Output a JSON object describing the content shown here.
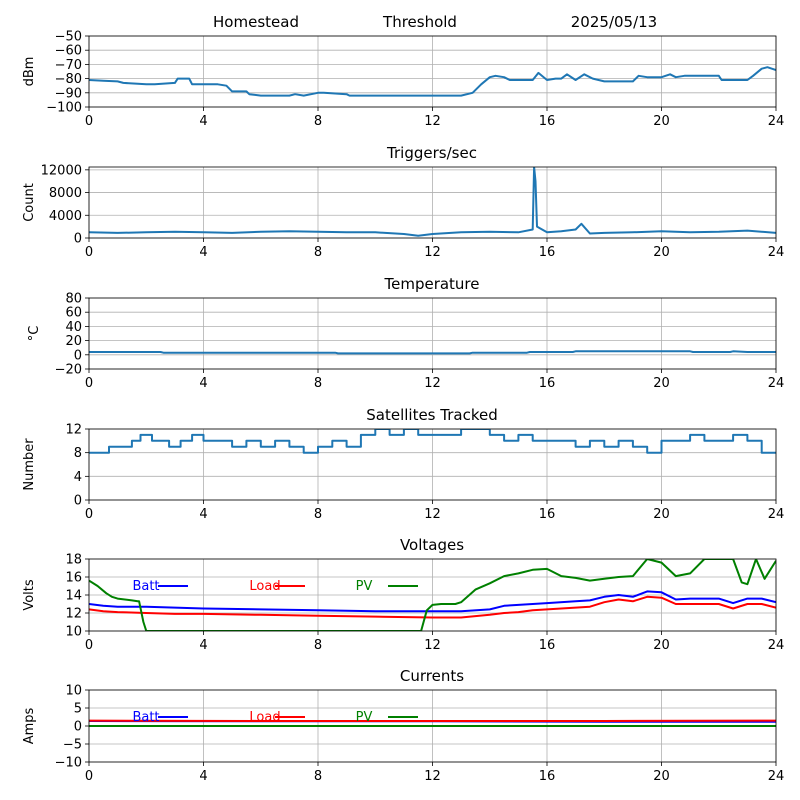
{
  "chart_data": [
    {
      "id": "dbm",
      "type": "line",
      "title": "",
      "header": [
        "Homestead",
        "Threshold",
        "2025/05/13"
      ],
      "ylabel": "dBm",
      "xlim": [
        0,
        24
      ],
      "ylim": [
        -100,
        -50
      ],
      "xticks": [
        0,
        4,
        8,
        12,
        16,
        20,
        24
      ],
      "yticks": [
        -100,
        -90,
        -80,
        -70,
        -60,
        -50
      ],
      "series": [
        {
          "color": "#1f77b4",
          "x": [
            0,
            0.5,
            1,
            1.2,
            2,
            2.3,
            3,
            3.1,
            3.5,
            3.6,
            4.5,
            4.8,
            5,
            5.5,
            5.6,
            6,
            7,
            7.2,
            7.5,
            8,
            8.2,
            9,
            9.1,
            10,
            11,
            12,
            12.5,
            13,
            13.4,
            13.7,
            14,
            14.2,
            14.5,
            14.7,
            15,
            15.5,
            15.7,
            16,
            16.3,
            16.5,
            16.7,
            17,
            17.3,
            17.6,
            18,
            19,
            19.2,
            19.5,
            20,
            20.3,
            20.5,
            20.8,
            21,
            21.5,
            22,
            22.1,
            22.5,
            22.7,
            23,
            23.2,
            23.5,
            23.7,
            24
          ],
          "y": [
            -81,
            -81.5,
            -82,
            -83,
            -84,
            -84,
            -83,
            -80,
            -80,
            -84,
            -84,
            -85,
            -89,
            -89,
            -91,
            -92,
            -92,
            -91,
            -92,
            -90,
            -90,
            -91,
            -92,
            -92,
            -92,
            -92,
            -92,
            -92,
            -90,
            -84,
            -79,
            -78,
            -79,
            -81,
            -81,
            -81,
            -76,
            -81,
            -80,
            -80,
            -77,
            -81,
            -77,
            -80,
            -82,
            -82,
            -78,
            -79,
            -79,
            -77,
            -79,
            -78,
            -78,
            -78,
            -78,
            -81,
            -81,
            -81,
            -81,
            -78,
            -73,
            -72,
            -74
          ]
        }
      ]
    },
    {
      "id": "triggers",
      "type": "line",
      "title": "Triggers/sec",
      "ylabel": "Count",
      "xlim": [
        0,
        24
      ],
      "ylim": [
        0,
        12500
      ],
      "xticks": [
        0,
        4,
        8,
        12,
        16,
        20,
        24
      ],
      "yticks": [
        0,
        4000,
        8000,
        12000
      ],
      "series": [
        {
          "color": "#1f77b4",
          "x": [
            0,
            1,
            2,
            3,
            4,
            5,
            6,
            7,
            8,
            9,
            10,
            11,
            11.5,
            12,
            13,
            14,
            15,
            15.5,
            15.55,
            15.6,
            15.65,
            16,
            16.5,
            17,
            17.2,
            17.5,
            18,
            19,
            20,
            21,
            22,
            23,
            24
          ],
          "y": [
            1000,
            900,
            1000,
            1100,
            1000,
            900,
            1100,
            1200,
            1100,
            1000,
            1000,
            700,
            400,
            700,
            1000,
            1100,
            1000,
            1500,
            12500,
            10000,
            2000,
            1000,
            1200,
            1500,
            2500,
            800,
            900,
            1000,
            1200,
            1000,
            1100,
            1300,
            900
          ]
        }
      ]
    },
    {
      "id": "temperature",
      "type": "line",
      "title": "Temperature",
      "ylabel": "°C",
      "xlim": [
        0,
        24
      ],
      "ylim": [
        -20,
        80
      ],
      "xticks": [
        0,
        4,
        8,
        12,
        16,
        20,
        24
      ],
      "yticks": [
        -20,
        0,
        20,
        40,
        60,
        80
      ],
      "series": [
        {
          "color": "#1f77b4",
          "x": [
            0,
            2.5,
            2.6,
            8.6,
            8.7,
            13.3,
            13.4,
            15.3,
            15.4,
            16.9,
            17,
            21,
            21.1,
            22.4,
            22.5,
            23,
            24
          ],
          "y": [
            4,
            4,
            3,
            3,
            2,
            2,
            3,
            3,
            4,
            4,
            5,
            5,
            4,
            4,
            5,
            4,
            4
          ]
        }
      ]
    },
    {
      "id": "satellites",
      "type": "line",
      "title": "Satellites Tracked",
      "ylabel": "Number",
      "xlim": [
        0,
        24
      ],
      "ylim": [
        0,
        12
      ],
      "xticks": [
        0,
        4,
        8,
        12,
        16,
        20,
        24
      ],
      "yticks": [
        0,
        4,
        8,
        12
      ],
      "series": [
        {
          "color": "#1f77b4",
          "x": [
            0,
            0.7,
            0.7,
            1.0,
            1.0,
            1.5,
            1.5,
            1.8,
            1.8,
            2.2,
            2.2,
            2.8,
            2.8,
            3.2,
            3.2,
            3.6,
            3.6,
            4.0,
            4.0,
            4.5,
            4.5,
            5.0,
            5.0,
            5.5,
            5.5,
            6.0,
            6.0,
            6.5,
            6.5,
            7.0,
            7.0,
            7.5,
            7.5,
            8.0,
            8.0,
            8.5,
            8.5,
            9.0,
            9.0,
            9.5,
            9.5,
            10.0,
            10.0,
            10.5,
            10.5,
            11.0,
            11.0,
            11.5,
            11.5,
            12.0,
            12.0,
            13.0,
            13.0,
            14.0,
            14.0,
            14.5,
            14.5,
            15.0,
            15.0,
            15.5,
            15.5,
            16.0,
            16.0,
            17.0,
            17.0,
            17.5,
            17.5,
            18.0,
            18.0,
            18.5,
            18.5,
            19.0,
            19.0,
            19.5,
            19.5,
            20.0,
            20.0,
            21.0,
            21.0,
            21.5,
            21.5,
            22.5,
            22.5,
            23.0,
            23.0,
            23.5,
            23.5,
            24
          ],
          "y": [
            8,
            8,
            9,
            9,
            9,
            9,
            10,
            10,
            11,
            11,
            10,
            10,
            9,
            9,
            10,
            10,
            11,
            11,
            10,
            10,
            10,
            10,
            9,
            9,
            10,
            10,
            9,
            9,
            10,
            10,
            9,
            9,
            8,
            8,
            9,
            9,
            10,
            10,
            9,
            9,
            11,
            11,
            12,
            12,
            11,
            11,
            12,
            12,
            11,
            11,
            11,
            11,
            12,
            12,
            11,
            11,
            10,
            10,
            11,
            11,
            10,
            10,
            10,
            10,
            9,
            9,
            10,
            10,
            9,
            9,
            10,
            10,
            9,
            9,
            8,
            8,
            10,
            10,
            11,
            11,
            10,
            10,
            11,
            11,
            10,
            10,
            8,
            8
          ]
        }
      ]
    },
    {
      "id": "voltages",
      "type": "line",
      "title": "Voltages",
      "ylabel": "Volts",
      "xlim": [
        0,
        24
      ],
      "ylim": [
        10,
        18
      ],
      "xticks": [
        0,
        4,
        8,
        12,
        16,
        20,
        24
      ],
      "yticks": [
        10,
        12,
        14,
        16,
        18
      ],
      "legend": [
        "Batt",
        "Load",
        "PV"
      ],
      "series": [
        {
          "name": "Batt",
          "color": "#0000ff",
          "x": [
            0,
            0.5,
            1,
            2,
            3,
            4,
            6,
            8,
            10,
            12,
            13,
            14,
            14.5,
            15,
            15.5,
            16,
            17,
            17.5,
            18,
            18.5,
            19,
            19.5,
            20,
            20.5,
            21,
            22,
            22.5,
            23,
            23.5,
            24
          ],
          "y": [
            13.0,
            12.8,
            12.7,
            12.7,
            12.6,
            12.5,
            12.4,
            12.3,
            12.2,
            12.2,
            12.2,
            12.4,
            12.8,
            12.9,
            13.0,
            13.1,
            13.3,
            13.4,
            13.8,
            14.0,
            13.8,
            14.4,
            14.3,
            13.5,
            13.6,
            13.6,
            13.1,
            13.6,
            13.6,
            13.2
          ]
        },
        {
          "name": "Load",
          "color": "#ff0000",
          "x": [
            0,
            0.5,
            1,
            2,
            3,
            4,
            6,
            8,
            10,
            12,
            13,
            14,
            14.5,
            15,
            15.5,
            16,
            17,
            17.5,
            18,
            18.5,
            19,
            19.5,
            20,
            20.5,
            21,
            22,
            22.5,
            23,
            23.5,
            24
          ],
          "y": [
            12.4,
            12.2,
            12.1,
            12.0,
            11.9,
            11.9,
            11.8,
            11.7,
            11.6,
            11.5,
            11.5,
            11.8,
            12.0,
            12.1,
            12.3,
            12.4,
            12.6,
            12.7,
            13.2,
            13.5,
            13.3,
            13.8,
            13.7,
            13.0,
            13.0,
            13.0,
            12.5,
            13.0,
            13.0,
            12.6
          ]
        },
        {
          "name": "PV",
          "color": "#008000",
          "x": [
            0,
            0.3,
            0.6,
            0.8,
            1,
            1.5,
            1.7,
            1.75,
            1.9,
            2.0,
            11.6,
            11.8,
            12,
            12.3,
            12.8,
            13,
            13.5,
            14,
            14.5,
            15,
            15.5,
            16,
            16.5,
            17,
            17.5,
            18,
            18.5,
            19,
            19.5,
            20,
            20.5,
            21,
            21.5,
            22,
            22.5,
            22.8,
            23,
            23.3,
            23.6,
            24
          ],
          "y": [
            15.6,
            15.0,
            14.2,
            13.8,
            13.6,
            13.4,
            13.3,
            13.3,
            11.0,
            10.0,
            10.0,
            12.3,
            12.9,
            13.0,
            13.0,
            13.2,
            14.6,
            15.3,
            16.1,
            16.4,
            16.8,
            16.9,
            16.1,
            15.9,
            15.6,
            15.8,
            16.0,
            16.1,
            18.0,
            17.6,
            16.1,
            16.4,
            18.0,
            18.0,
            18.0,
            15.4,
            15.2,
            18.0,
            15.8,
            17.8
          ]
        }
      ]
    },
    {
      "id": "currents",
      "type": "line",
      "title": "Currents",
      "ylabel": "Amps",
      "xlim": [
        0,
        24
      ],
      "ylim": [
        -10,
        10
      ],
      "xticks": [
        0,
        4,
        8,
        12,
        16,
        20,
        24
      ],
      "yticks": [
        -10,
        -5,
        0,
        5,
        10
      ],
      "legend": [
        "Batt",
        "Load",
        "PV"
      ],
      "series": [
        {
          "name": "Batt",
          "color": "#0000ff",
          "x": [
            0,
            6,
            12,
            18,
            24
          ],
          "y": [
            1.4,
            1.3,
            1.3,
            1.2,
            1.2
          ]
        },
        {
          "name": "Load",
          "color": "#ff0000",
          "x": [
            0,
            6,
            12,
            18,
            24
          ],
          "y": [
            1.5,
            1.4,
            1.4,
            1.4,
            1.5
          ]
        },
        {
          "name": "PV",
          "color": "#008000",
          "x": [
            0,
            24
          ],
          "y": [
            0,
            0
          ]
        }
      ]
    }
  ]
}
